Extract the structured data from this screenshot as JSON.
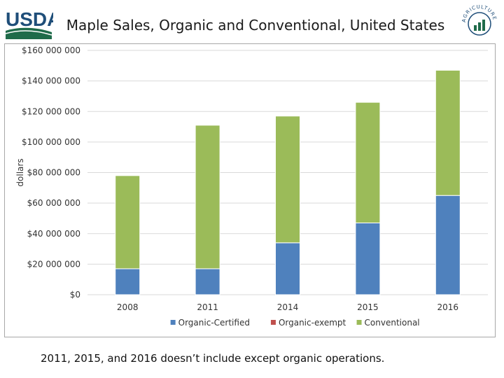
{
  "header": {
    "title": "Maple Sales, Organic and Conventional, United States",
    "logo_text": "USDA",
    "seal_text": "AGRICULTURE COUNTS"
  },
  "chart_data": {
    "type": "bar",
    "stacked": true,
    "title": "Maple Sales, Organic and Conventional, United States",
    "categories": [
      "2008",
      "2011",
      "2014",
      "2015",
      "2016"
    ],
    "series": [
      {
        "name": "Organic-Certified",
        "color": "#4f81bd",
        "values": [
          17000000,
          17000000,
          34000000,
          47000000,
          65000000
        ]
      },
      {
        "name": "Organic-exempt",
        "color": "#c0504d",
        "values": [
          0,
          0,
          0,
          0,
          0
        ]
      },
      {
        "name": "Conventional",
        "color": "#9bbb59",
        "values": [
          61000000,
          94000000,
          83000000,
          79000000,
          82000000
        ]
      }
    ],
    "ylabel": "dollars",
    "xlabel": "",
    "ylim": [
      0,
      160000000
    ],
    "yticks": [
      0,
      20000000,
      40000000,
      60000000,
      80000000,
      100000000,
      120000000,
      140000000,
      160000000
    ],
    "ytick_labels": [
      "$0",
      "$20 000 000",
      "$40 000 000",
      "$60 000 000",
      "$80 000 000",
      "$100 000 000",
      "$120 000 000",
      "$140 000 000",
      "$160 000 000"
    ],
    "grid": true,
    "legend_position": "bottom"
  },
  "footnote": "2011, 2015, and 2016  doesn’t include except organic operations."
}
